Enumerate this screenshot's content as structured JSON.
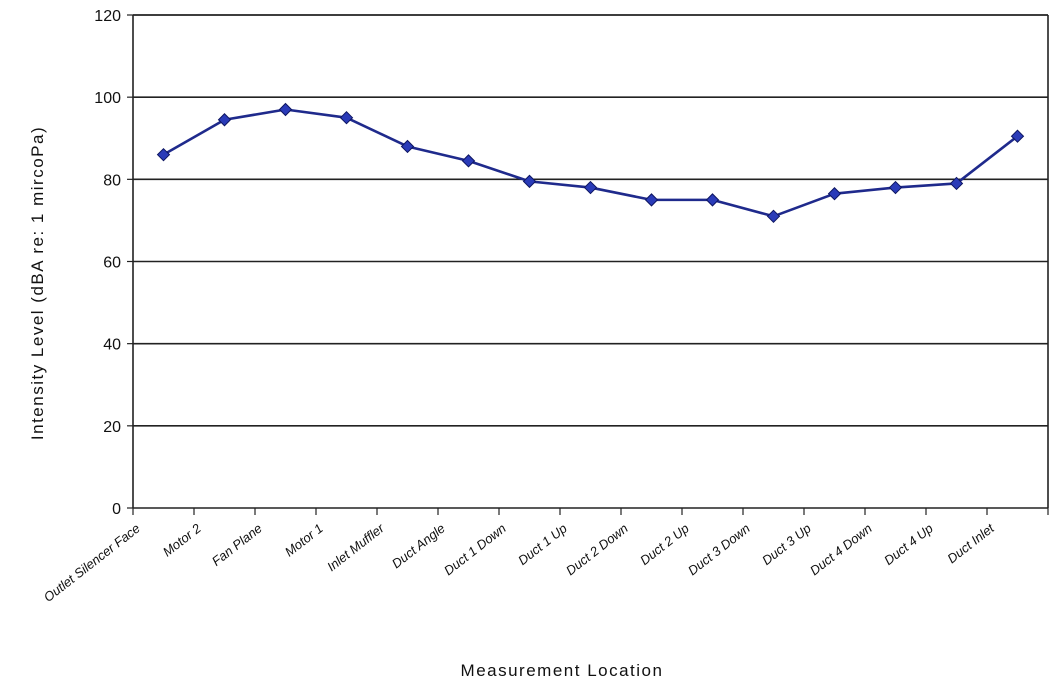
{
  "chart_data": {
    "type": "line",
    "title": "",
    "xlabel": "Measurement Location",
    "ylabel": "Intensity Level (dBA re: 1 mircoPa)",
    "ylim": [
      0,
      120
    ],
    "yticks": [
      0,
      20,
      40,
      60,
      80,
      100,
      120
    ],
    "grid": "horizontal",
    "legend": "none",
    "categories": [
      "Outlet Silencer Face",
      "Motor 2",
      "Fan Plane",
      "Motor 1",
      "Inlet Muffler",
      "Duct Angle",
      "Duct 1 Down",
      "Duct 1 Up",
      "Duct 2 Down",
      "Duct 2 Up",
      "Duct 3 Down",
      "Duct 3 Up",
      "Duct 4 Down",
      "Duct 4 Up",
      "Duct Inlet"
    ],
    "series": [
      {
        "values": [
          86,
          94.5,
          97,
          95,
          88,
          84.5,
          79.5,
          78,
          75,
          75,
          71,
          76.5,
          78,
          79,
          90.5
        ],
        "color": "#1f2a8c",
        "marker": "diamond",
        "marker_color": "#2a3bb8"
      }
    ]
  }
}
